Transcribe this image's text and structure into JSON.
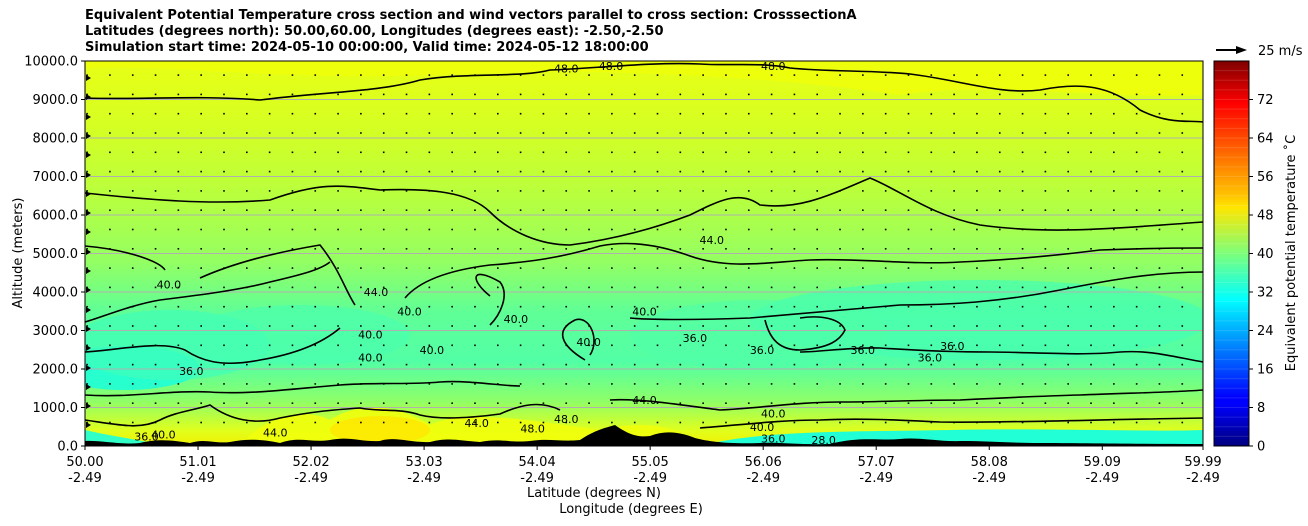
{
  "chart_data": {
    "type": "heatmap",
    "title_lines": [
      "Equivalent Potential Temperature cross section and wind vectors parallel to cross section: CrosssectionA",
      "Latitudes (degrees north): 50.00,60.00, Longitudes (degrees east): -2.50,-2.50",
      "Simulation start time: 2024-05-10 00:00:00, Valid time: 2024-05-12 18:00:00"
    ],
    "xlabel_lines": [
      "Latitude (degrees N)",
      "Longitude (degrees E)"
    ],
    "ylabel": "Altitude (meters)",
    "x_ticks": [
      {
        "lat": "50.00",
        "lon": "-2.49"
      },
      {
        "lat": "51.01",
        "lon": "-2.49"
      },
      {
        "lat": "52.02",
        "lon": "-2.49"
      },
      {
        "lat": "53.03",
        "lon": "-2.49"
      },
      {
        "lat": "54.04",
        "lon": "-2.49"
      },
      {
        "lat": "55.05",
        "lon": "-2.49"
      },
      {
        "lat": "56.06",
        "lon": "-2.49"
      },
      {
        "lat": "57.07",
        "lon": "-2.49"
      },
      {
        "lat": "58.08",
        "lon": "-2.49"
      },
      {
        "lat": "59.09",
        "lon": "-2.49"
      },
      {
        "lat": "59.99",
        "lon": "-2.49"
      }
    ],
    "xlim": [
      50.0,
      59.99
    ],
    "y_ticks": [
      "0.0",
      "1000.0",
      "2000.0",
      "3000.0",
      "4000.0",
      "5000.0",
      "6000.0",
      "7000.0",
      "8000.0",
      "9000.0",
      "10000.0"
    ],
    "ylim": [
      0,
      10000
    ],
    "grid": "horizontal",
    "colorbar": {
      "label": "Equivalent potential temperature $^\\circ$C",
      "label_text": "Equivalent potential temperature ˚C",
      "range": [
        0,
        80
      ],
      "ticks": [
        "0",
        "8",
        "16",
        "24",
        "32",
        "40",
        "48",
        "56",
        "64",
        "72"
      ],
      "colormap": "jet"
    },
    "wind_key": {
      "label": "25 m/s"
    },
    "contour_labels": [
      {
        "text": "48.0",
        "lat": 54.3,
        "alt": 9800
      },
      {
        "text": "48.0",
        "lat": 54.7,
        "alt": 10000
      },
      {
        "text": "48.0",
        "lat": 56.15,
        "alt": 9950
      },
      {
        "text": "44.0",
        "lat": 55.6,
        "alt": 5350
      },
      {
        "text": "40.0",
        "lat": 50.75,
        "alt": 4200
      },
      {
        "text": "44.0",
        "lat": 52.6,
        "alt": 4000
      },
      {
        "text": "40.0",
        "lat": 52.9,
        "alt": 3500
      },
      {
        "text": "40.0",
        "lat": 52.55,
        "alt": 2900
      },
      {
        "text": "40.0",
        "lat": 52.55,
        "alt": 2300
      },
      {
        "text": "40.0",
        "lat": 53.1,
        "alt": 2500
      },
      {
        "text": "40.0",
        "lat": 53.85,
        "alt": 3300
      },
      {
        "text": "40.0",
        "lat": 55.0,
        "alt": 3500
      },
      {
        "text": "40.0",
        "lat": 54.5,
        "alt": 2700
      },
      {
        "text": "36.0",
        "lat": 55.45,
        "alt": 2800
      },
      {
        "text": "36.0",
        "lat": 56.05,
        "alt": 2500
      },
      {
        "text": "36.0",
        "lat": 56.95,
        "alt": 2500
      },
      {
        "text": "36.0",
        "lat": 57.55,
        "alt": 2300
      },
      {
        "text": "36.0",
        "lat": 57.75,
        "alt": 2600
      },
      {
        "text": "36.0",
        "lat": 50.95,
        "alt": 1950
      },
      {
        "text": "40.0",
        "lat": 50.7,
        "alt": 300
      },
      {
        "text": "36.0",
        "lat": 50.55,
        "alt": 250
      },
      {
        "text": "44.0",
        "lat": 51.7,
        "alt": 350
      },
      {
        "text": "44.0",
        "lat": 53.5,
        "alt": 600
      },
      {
        "text": "48.0",
        "lat": 54.0,
        "alt": 450
      },
      {
        "text": "48.0",
        "lat": 54.3,
        "alt": 700
      },
      {
        "text": "44.0",
        "lat": 55.0,
        "alt": 1200
      },
      {
        "text": "40.0",
        "lat": 56.15,
        "alt": 850
      },
      {
        "text": "40.0",
        "lat": 56.05,
        "alt": 500
      },
      {
        "text": "36.0",
        "lat": 56.15,
        "alt": 200
      },
      {
        "text": "28.0",
        "lat": 56.6,
        "alt": 100
      }
    ]
  }
}
